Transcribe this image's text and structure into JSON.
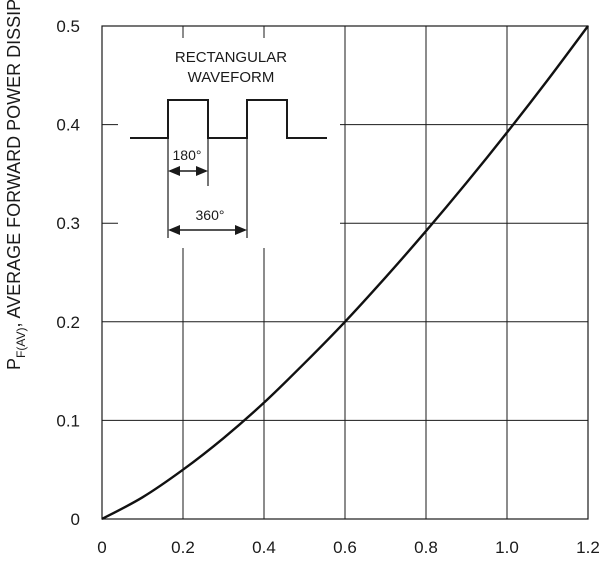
{
  "chart_data": {
    "type": "line",
    "title": "",
    "xlabel": "",
    "ylabel": {
      "main": "P",
      "subscript": "F(AV)",
      "rest": ", AVERAGE FORWARD POWER DISSIPATION (W)"
    },
    "xlim": [
      0,
      1.2
    ],
    "ylim": [
      0,
      0.5
    ],
    "x_ticks": [
      "0",
      "0.2",
      "0.4",
      "0.6",
      "0.8",
      "1.0",
      "1.2"
    ],
    "y_ticks": [
      "0",
      "0.1",
      "0.2",
      "0.3",
      "0.4",
      "0.5"
    ],
    "grid": true,
    "series": [
      {
        "x": [
          0,
          0.1,
          0.2,
          0.3,
          0.4,
          0.5,
          0.6,
          0.7,
          0.8,
          0.9,
          1.0,
          1.1,
          1.2
        ],
        "y": [
          0,
          0.022,
          0.05,
          0.082,
          0.118,
          0.158,
          0.2,
          0.245,
          0.292,
          0.341,
          0.392,
          0.445,
          0.5
        ]
      }
    ],
    "inset": {
      "title_lines": [
        "RECTANGULAR",
        "WAVEFORM"
      ],
      "dim_short": "180°",
      "dim_long": "360°"
    }
  }
}
